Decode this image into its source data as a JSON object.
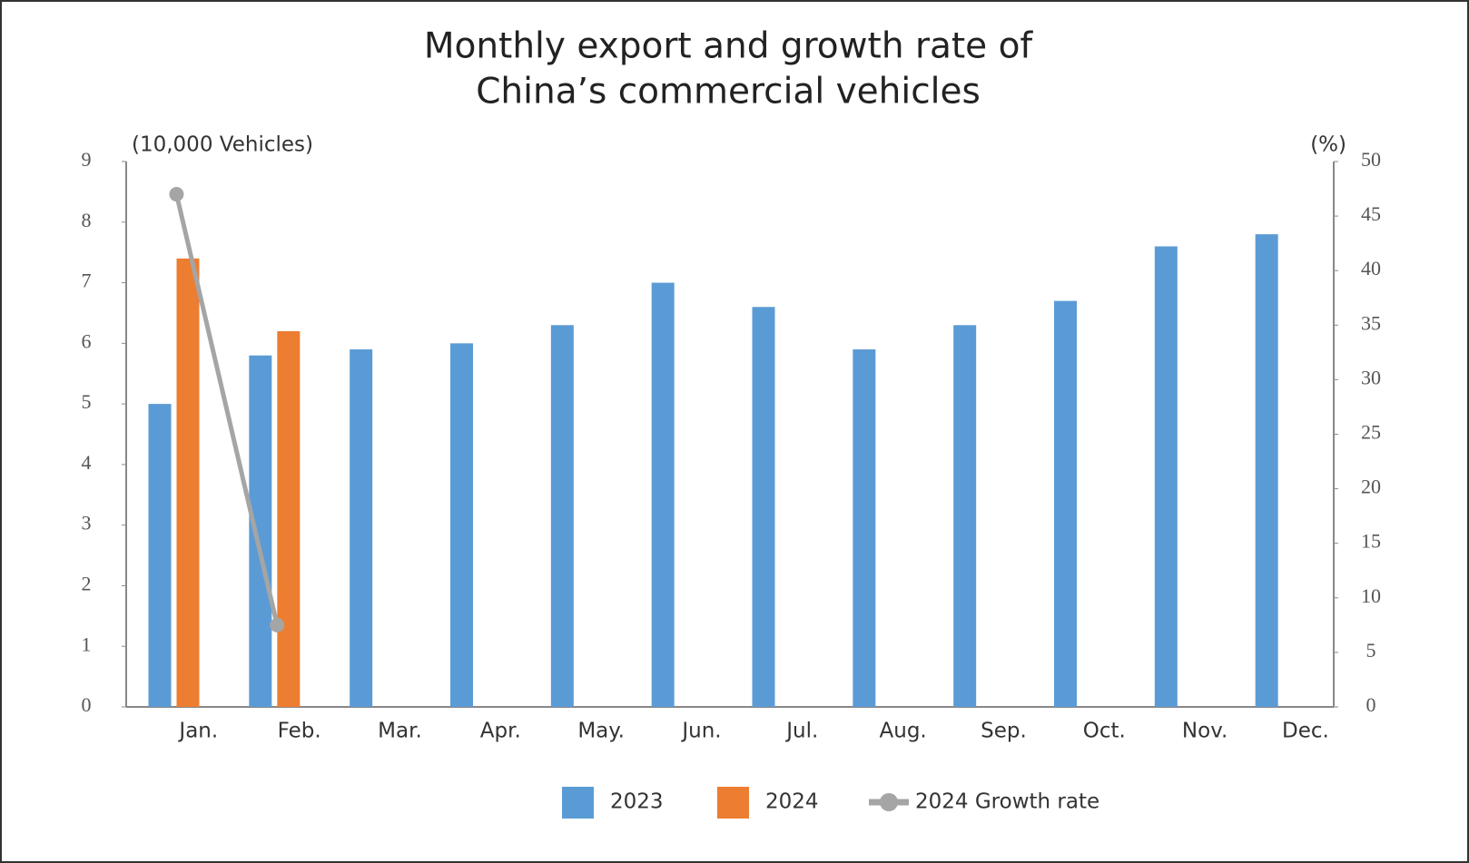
{
  "chart_data": {
    "type": "bar",
    "title": [
      "Monthly export and growth rate of",
      "China’s commercial vehicles"
    ],
    "y_label": "(10,000 Vehicles)",
    "y2_label": "(%)",
    "categories": [
      "Jan.",
      "Feb.",
      "Mar.",
      "Apr.",
      "May.",
      "Jun.",
      "Jul.",
      "Aug.",
      "Sep.",
      "Oct.",
      "Nov.",
      "Dec."
    ],
    "series": [
      {
        "name": "2023",
        "color": "#5b9bd5",
        "values": [
          5.0,
          5.8,
          5.9,
          6.0,
          6.3,
          7.0,
          6.6,
          5.9,
          6.3,
          6.7,
          7.6,
          7.8
        ]
      },
      {
        "name": "2024",
        "color": "#ed7d31",
        "values": [
          7.4,
          6.2,
          null,
          null,
          null,
          null,
          null,
          null,
          null,
          null,
          null,
          null
        ]
      },
      {
        "name": "2024 Growth rate",
        "type": "line",
        "axis": "y2",
        "color": "#a5a5a5",
        "values": [
          47,
          7.5,
          null,
          null,
          null,
          null,
          null,
          null,
          null,
          null,
          null,
          null
        ]
      }
    ],
    "ylim": [
      0,
      9
    ],
    "yticks": [
      0,
      1,
      2,
      3,
      4,
      5,
      6,
      7,
      8,
      9
    ],
    "y2lim": [
      0,
      50
    ],
    "y2ticks": [
      0,
      5,
      10,
      15,
      20,
      25,
      30,
      35,
      40,
      45,
      50
    ],
    "grid": false
  }
}
